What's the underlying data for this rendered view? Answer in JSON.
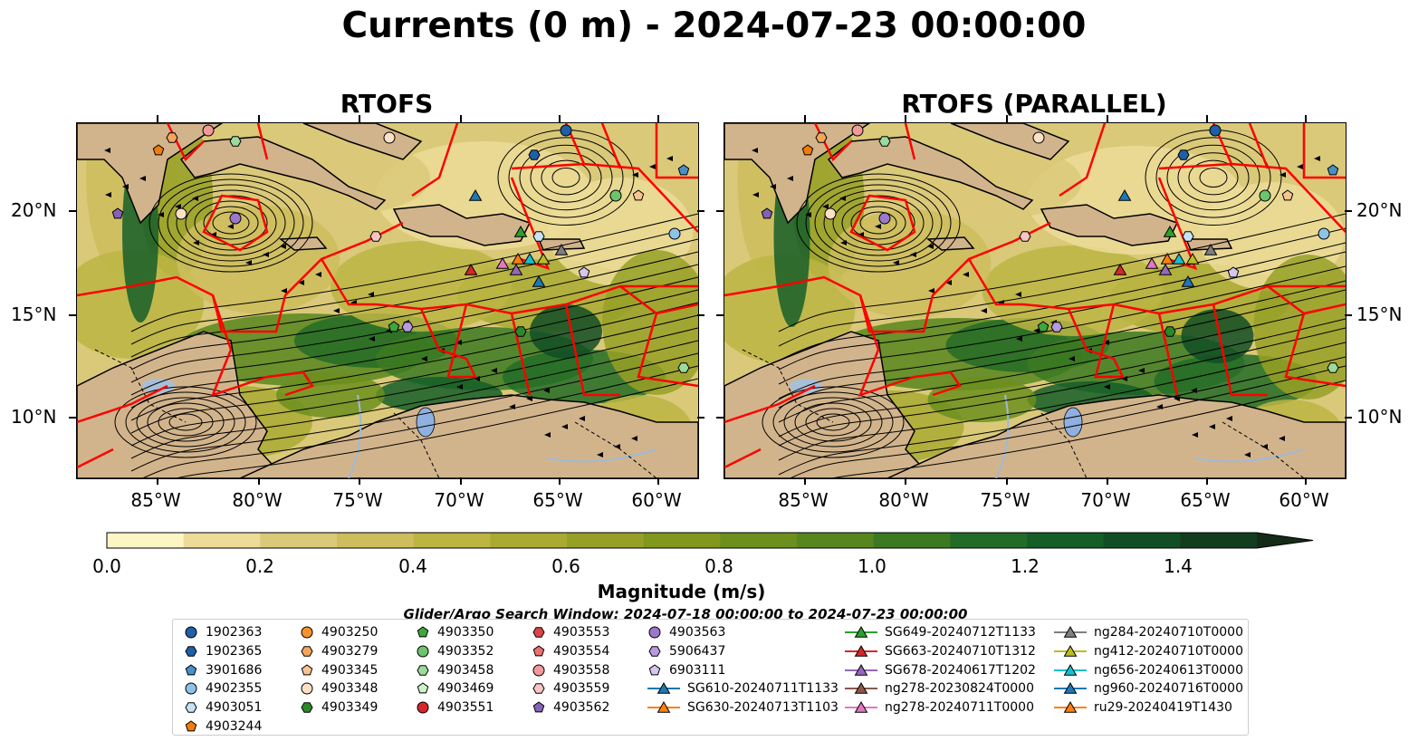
{
  "title": "Currents (0 m) - 2024-07-23 00:00:00",
  "panels": [
    {
      "title": "RTOFS"
    },
    {
      "title": "RTOFS (PARALLEL)"
    }
  ],
  "map": {
    "lon_labels": [
      "85°W",
      "80°W",
      "75°W",
      "70°W",
      "65°W",
      "60°W"
    ],
    "lat_labels": [
      "20°N",
      "15°N",
      "10°N"
    ],
    "colors": {
      "land": "#d2b48c",
      "boundary": "#ff0000",
      "lake": "#8fb0e0",
      "river": "#9fbad8"
    }
  },
  "colorbar": {
    "label": "Magnitude (m/s)",
    "ticks": [
      "0.0",
      "0.2",
      "0.4",
      "0.6",
      "0.8",
      "1.0",
      "1.2",
      "1.4"
    ],
    "range": [
      0.0,
      1.5
    ],
    "extend": "max",
    "colors": [
      "#fdf5c4",
      "#ecdc98",
      "#dac979",
      "#cdbd5d",
      "#bcb544",
      "#a9aa32",
      "#96a026",
      "#81971d",
      "#6c8f1d",
      "#57861f",
      "#3c7a22",
      "#236c27",
      "#155e28",
      "#124e24",
      "#123e1e",
      "#142c17"
    ]
  },
  "search_window": "Glider/Argo Search Window: 2024-07-18 00:00:00 to 2024-07-23 00:00:00",
  "legend": [
    {
      "label": "1902363",
      "shape": "circle",
      "color": "#1f5fa8"
    },
    {
      "label": "1902365",
      "shape": "hexagon",
      "color": "#1f5fa8"
    },
    {
      "label": "3901686",
      "shape": "pentagon",
      "color": "#4a90c8"
    },
    {
      "label": "4902355",
      "shape": "circle",
      "color": "#8ec3e8"
    },
    {
      "label": "4903051",
      "shape": "hexagon",
      "color": "#c6e2f5"
    },
    {
      "label": "4903244",
      "shape": "pentagon",
      "color": "#f07d0a"
    },
    {
      "label": "4903250",
      "shape": "circle",
      "color": "#f5922a"
    },
    {
      "label": "4903279",
      "shape": "hexagon",
      "color": "#f5a55c"
    },
    {
      "label": "4903345",
      "shape": "pentagon",
      "color": "#f9c491"
    },
    {
      "label": "4903348",
      "shape": "circle",
      "color": "#fde0c5"
    },
    {
      "label": "4903349",
      "shape": "hexagon",
      "color": "#2a8a2a"
    },
    {
      "label": "4903350",
      "shape": "pentagon",
      "color": "#3ea63e"
    },
    {
      "label": "4903352",
      "shape": "circle",
      "color": "#6cc46c"
    },
    {
      "label": "4903458",
      "shape": "hexagon",
      "color": "#9bda9b"
    },
    {
      "label": "4903469",
      "shape": "pentagon",
      "color": "#cdf2c6"
    },
    {
      "label": "4903551",
      "shape": "circle",
      "color": "#d62728"
    },
    {
      "label": "4903553",
      "shape": "hexagon",
      "color": "#dd4545"
    },
    {
      "label": "4903554",
      "shape": "pentagon",
      "color": "#ec7070"
    },
    {
      "label": "4903558",
      "shape": "circle",
      "color": "#f19a9a"
    },
    {
      "label": "4903559",
      "shape": "hexagon",
      "color": "#f8c4c4"
    },
    {
      "label": "4903562",
      "shape": "pentagon",
      "color": "#8561b8"
    },
    {
      "label": "4903563",
      "shape": "circle",
      "color": "#9c78cc"
    },
    {
      "label": "5906437",
      "shape": "hexagon",
      "color": "#b89ae0"
    },
    {
      "label": "6903111",
      "shape": "pentagon",
      "color": "#d6c6f0"
    },
    {
      "label": "SG610-20240711T1133",
      "shape": "triangle",
      "color": "#1f77b4"
    },
    {
      "label": "SG630-20240713T1103",
      "shape": "triangle",
      "color": "#ff7f0e"
    },
    {
      "label": "SG649-20240712T1133",
      "shape": "triangle",
      "color": "#2ca02c"
    },
    {
      "label": "SG663-20240710T1312",
      "shape": "triangle",
      "color": "#d62728"
    },
    {
      "label": "SG678-20240617T1202",
      "shape": "triangle",
      "color": "#9467bd"
    },
    {
      "label": "ng278-20230824T0000",
      "shape": "triangle",
      "color": "#8c564b"
    },
    {
      "label": "ng278-20240711T0000",
      "shape": "triangle",
      "color": "#e377c2"
    },
    {
      "label": "ng284-20240710T0000",
      "shape": "triangle",
      "color": "#7f7f7f"
    },
    {
      "label": "ng412-20240710T0000",
      "shape": "triangle",
      "color": "#bcbd22"
    },
    {
      "label": "ng656-20240613T0000",
      "shape": "triangle",
      "color": "#17becf"
    },
    {
      "label": "ng960-20240716T0000",
      "shape": "triangle",
      "color": "#1f77b4"
    },
    {
      "label": "ru29-20240419T1430",
      "shape": "triangle",
      "color": "#ff7f0e"
    }
  ]
}
